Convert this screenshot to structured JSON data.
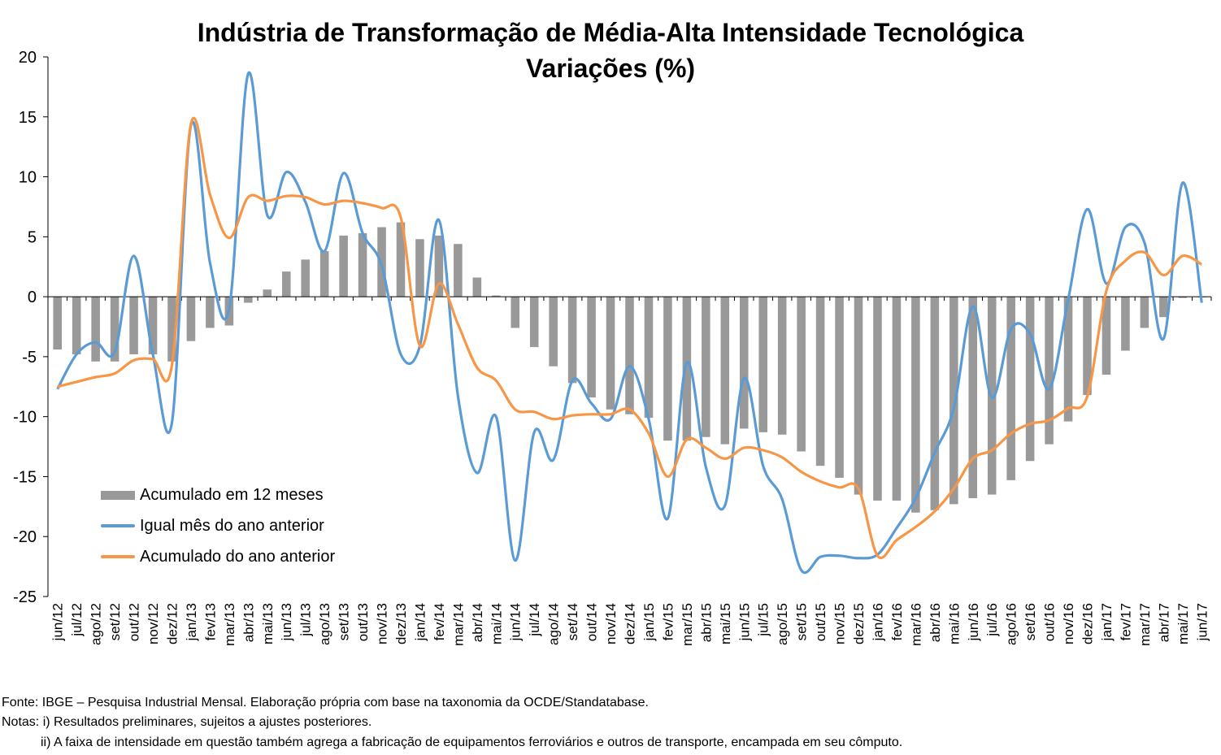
{
  "title": "Indústria de Transformação de Média-Alta Intensidade Tecnológica",
  "subtitle": "Variações (%)",
  "notes": {
    "source": "Fonte: IBGE – Pesquisa Industrial Mensal. Elaboração própria com base na taxonomia da OCDE/Standatabase.",
    "note1": "Notas: i) Resultados preliminares, sujeitos a ajustes posteriores.",
    "note2": "ii) A faixa de intensidade em questão também agrega a fabricação de equipamentos ferroviários e outros de transporte, encampada em seu cômputo."
  },
  "colors": {
    "bars": "#999999",
    "line_monthly": "#5b9bd5",
    "line_ytd": "#f79646",
    "axis": "#000000"
  },
  "chart_data": {
    "type": "bar",
    "ylim": [
      -25,
      20
    ],
    "yticks": [
      20,
      15,
      10,
      5,
      0,
      -5,
      -10,
      -15,
      -20,
      -25
    ],
    "grid": false,
    "legend_position": "lower-left",
    "categories": [
      "jun/12",
      "jul/12",
      "ago/12",
      "set/12",
      "out/12",
      "nov/12",
      "dez/12",
      "jan/13",
      "fev/13",
      "mar/13",
      "abr/13",
      "mai/13",
      "jun/13",
      "jul/13",
      "ago/13",
      "set/13",
      "out/13",
      "nov/13",
      "dez/13",
      "jan/14",
      "fev/14",
      "mar/14",
      "abr/14",
      "mai/14",
      "jun/14",
      "jul/14",
      "ago/14",
      "set/14",
      "out/14",
      "nov/14",
      "dez/14",
      "jan/15",
      "fev/15",
      "mar/15",
      "abr/15",
      "mai/15",
      "jun/15",
      "jul/15",
      "ago/15",
      "set/15",
      "out/15",
      "nov/15",
      "dez/15",
      "jan/16",
      "fev/16",
      "mar/16",
      "abr/16",
      "mai/16",
      "jun/16",
      "jul/16",
      "ago/16",
      "set/16",
      "out/16",
      "nov/16",
      "dez/16",
      "jan/17",
      "fev/17",
      "mar/17",
      "abr/17",
      "mai/17",
      "jun/17"
    ],
    "series": [
      {
        "name": "Acumulado em 12 meses",
        "type": "bar",
        "values": [
          -4.4,
          -4.8,
          -5.4,
          -5.4,
          -4.8,
          -4.8,
          -5.4,
          -3.7,
          -2.6,
          -2.4,
          -0.5,
          0.6,
          2.1,
          3.1,
          3.8,
          5.1,
          5.3,
          5.8,
          6.2,
          4.8,
          5.1,
          4.4,
          1.6,
          0.1,
          -2.6,
          -4.2,
          -5.8,
          -7.2,
          -8.4,
          -9.4,
          -9.8,
          -10.1,
          -12.0,
          -12.0,
          -11.7,
          -12.3,
          -11.0,
          -11.3,
          -11.5,
          -12.9,
          -14.1,
          -15.1,
          -16.5,
          -17.0,
          -17.0,
          -18.0,
          -17.8,
          -17.3,
          -16.8,
          -16.5,
          -15.3,
          -13.7,
          -12.3,
          -10.4,
          -8.2,
          -6.5,
          -4.5,
          -2.6,
          -1.7,
          -0.1,
          0.0
        ]
      },
      {
        "name": "Igual mês do ano anterior",
        "type": "line",
        "values": [
          -7.7,
          -4.8,
          -3.8,
          -4.6,
          3.4,
          -4.8,
          -10.5,
          14.3,
          2.8,
          -1.0,
          18.6,
          6.8,
          10.4,
          7.9,
          3.8,
          10.3,
          5.3,
          2.6,
          -4.8,
          -4.1,
          6.4,
          -8.3,
          -14.7,
          -10.0,
          -22.0,
          -11.3,
          -13.6,
          -7.0,
          -8.9,
          -10.2,
          -5.8,
          -10.2,
          -18.5,
          -5.5,
          -14.2,
          -17.4,
          -6.8,
          -14.1,
          -16.9,
          -22.8,
          -21.7,
          -21.6,
          -21.8,
          -21.5,
          -19.3,
          -16.8,
          -13.0,
          -9.3,
          -0.8,
          -8.4,
          -2.7,
          -3.1,
          -7.7,
          -0.2,
          7.3,
          1.1,
          5.8,
          4.5,
          -3.5,
          9.5,
          -0.5
        ]
      },
      {
        "name": "Acumulado do ano anterior",
        "type": "line",
        "values": [
          -7.5,
          -7.1,
          -6.7,
          -6.4,
          -5.3,
          -5.2,
          -5.7,
          14.4,
          8.5,
          4.9,
          8.3,
          8.0,
          8.4,
          8.3,
          7.7,
          8.0,
          7.8,
          7.4,
          6.6,
          -4.1,
          1.1,
          -2.3,
          -5.9,
          -7.0,
          -9.4,
          -9.6,
          -10.2,
          -9.9,
          -9.8,
          -9.8,
          -9.4,
          -11.4,
          -15.0,
          -11.9,
          -12.6,
          -13.5,
          -12.6,
          -12.8,
          -13.4,
          -14.6,
          -15.4,
          -15.9,
          -16.0,
          -21.6,
          -20.3,
          -19.2,
          -17.9,
          -16.0,
          -13.5,
          -12.8,
          -11.4,
          -10.6,
          -10.3,
          -9.3,
          -8.3,
          0.5,
          3.0,
          3.7,
          1.8,
          3.4,
          2.7
        ]
      }
    ]
  }
}
